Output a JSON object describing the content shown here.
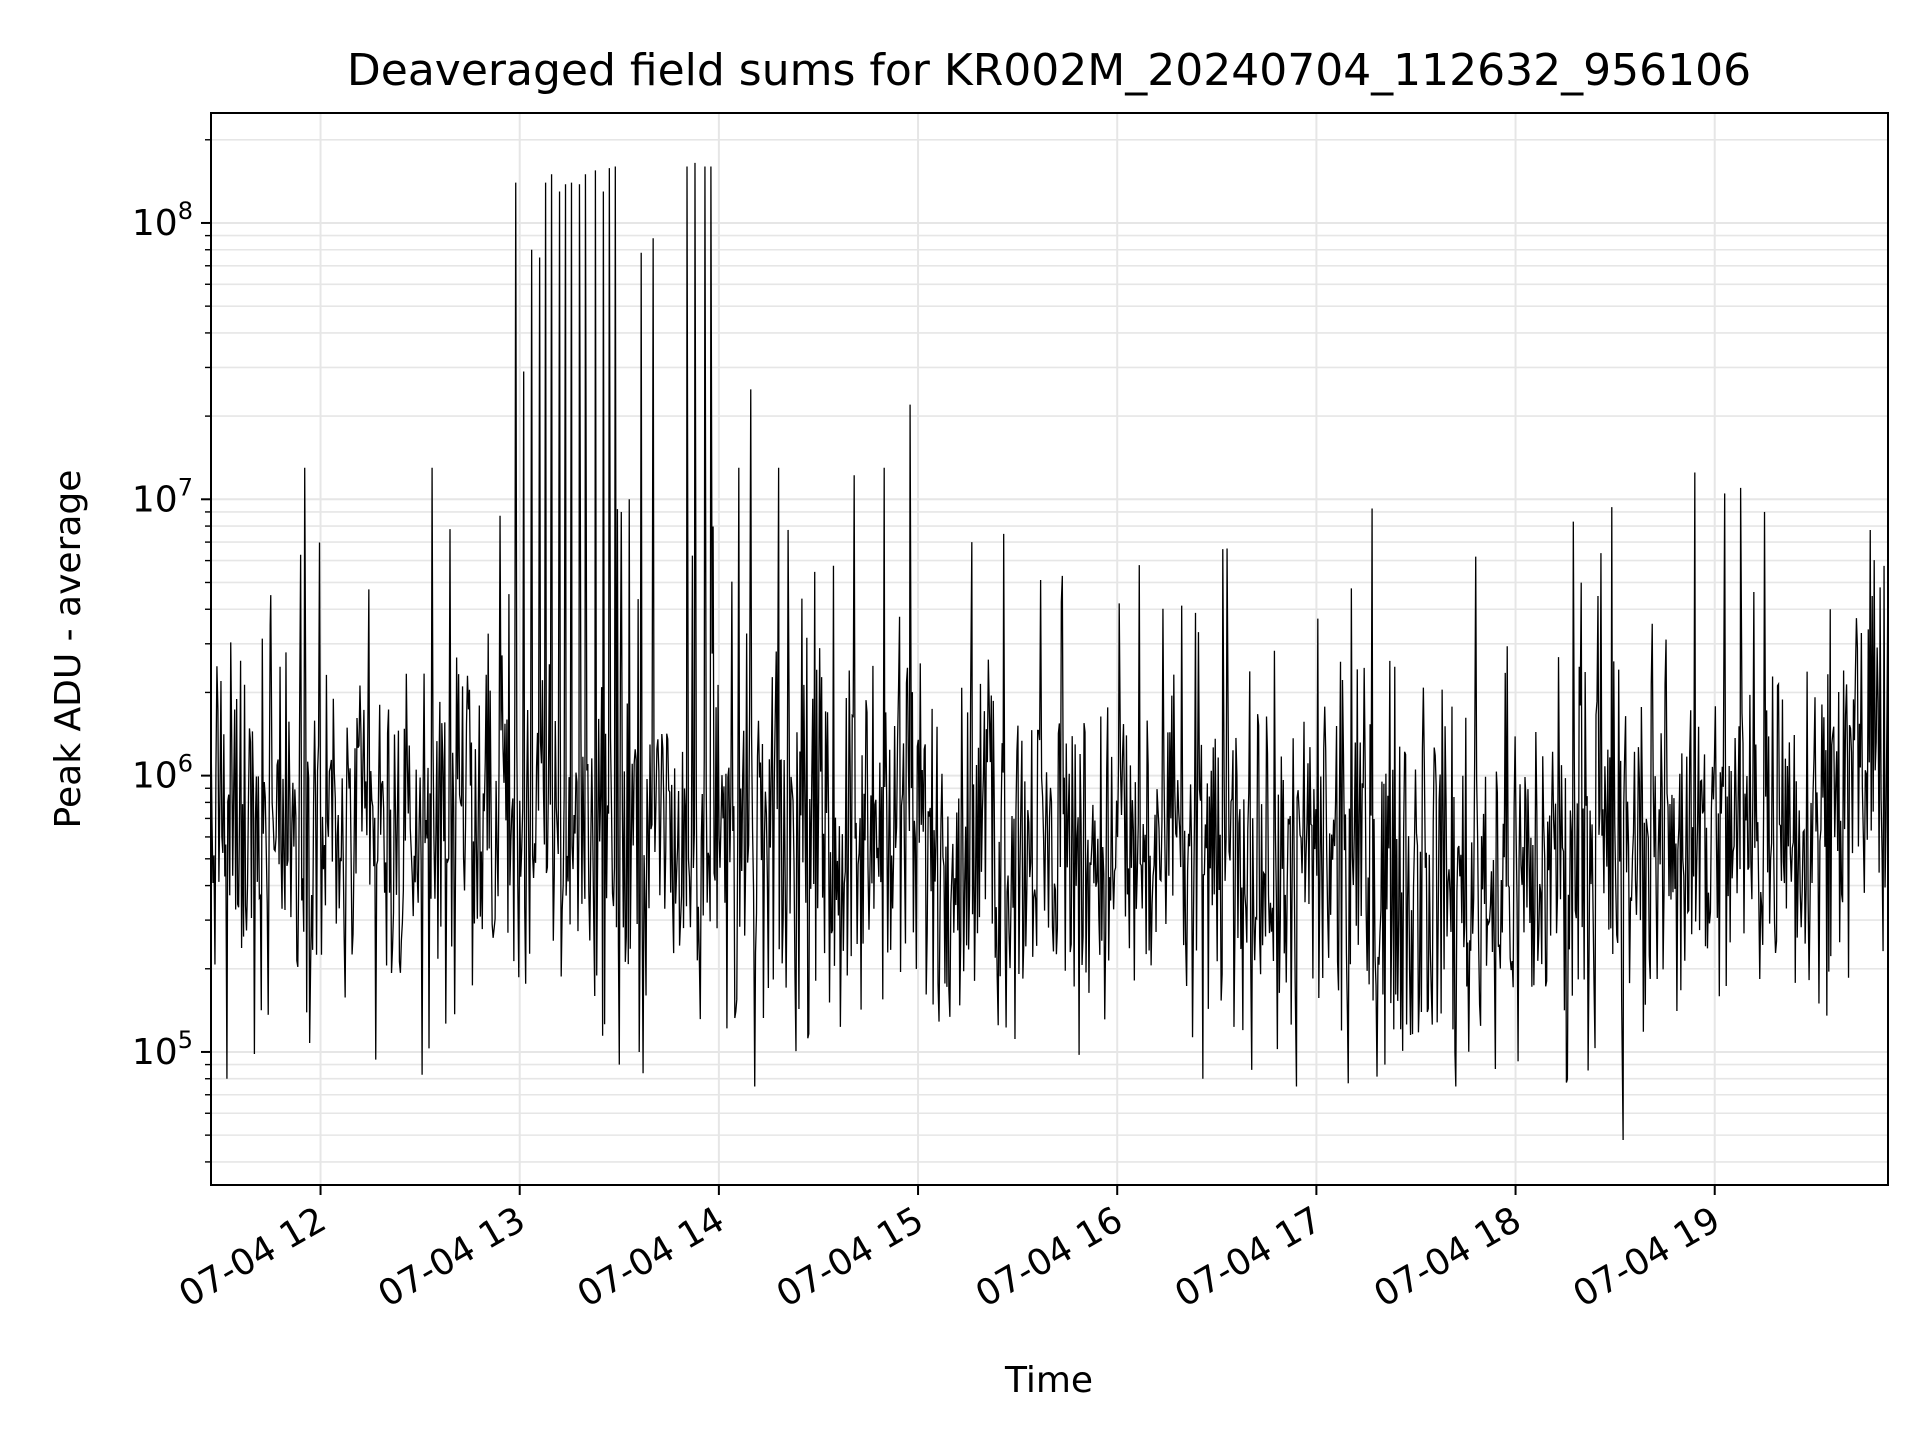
{
  "chart_data": {
    "type": "line",
    "title": "Deaveraged field sums for KR002M_20240704_112632_956106",
    "xlabel": "Time",
    "ylabel": "Peak ADU - average",
    "x_start": "07-04 11:27",
    "x_end": "07-04 19:52",
    "xlim_hours": [
      11.45,
      19.87
    ],
    "x_ticks": [
      "07-04 12",
      "07-04 13",
      "07-04 14",
      "07-04 15",
      "07-04 16",
      "07-04 17",
      "07-04 18",
      "07-04 19"
    ],
    "x_tick_hours": [
      12,
      13,
      14,
      15,
      16,
      17,
      18,
      19
    ],
    "y_scale": "log",
    "ylim": [
      33000,
      250000000
    ],
    "y_ticks": [
      {
        "base": "10",
        "exp": "5",
        "value": 100000
      },
      {
        "base": "10",
        "exp": "6",
        "value": 1000000
      },
      {
        "base": "10",
        "exp": "7",
        "value": 10000000
      },
      {
        "base": "10",
        "exp": "8",
        "value": 100000000
      }
    ],
    "grid": true,
    "line_color": "#000000",
    "grid_color": "#e6e6e6",
    "series": [
      {
        "name": "",
        "baseline": [
          {
            "hour": 11.45,
            "value": 700000
          },
          {
            "hour": 12.0,
            "value": 620000
          },
          {
            "hour": 12.5,
            "value": 550000
          },
          {
            "hour": 13.0,
            "value": 650000
          },
          {
            "hour": 13.5,
            "value": 600000
          },
          {
            "hour": 14.0,
            "value": 560000
          },
          {
            "hour": 14.5,
            "value": 560000
          },
          {
            "hour": 15.0,
            "value": 540000
          },
          {
            "hour": 15.5,
            "value": 520000
          },
          {
            "hour": 16.0,
            "value": 520000
          },
          {
            "hour": 16.5,
            "value": 500000
          },
          {
            "hour": 17.0,
            "value": 440000
          },
          {
            "hour": 17.5,
            "value": 430000
          },
          {
            "hour": 18.0,
            "value": 430000
          },
          {
            "hour": 18.5,
            "value": 500000
          },
          {
            "hour": 19.0,
            "value": 600000
          },
          {
            "hour": 19.5,
            "value": 750000
          },
          {
            "hour": 19.87,
            "value": 1300000
          }
        ],
        "peaks": [
          {
            "hour": 11.5,
            "value": 2200000
          },
          {
            "hour": 11.53,
            "value": 80000
          },
          {
            "hour": 11.75,
            "value": 4500000
          },
          {
            "hour": 11.9,
            "value": 6300000
          },
          {
            "hour": 12.56,
            "value": 13000000
          },
          {
            "hour": 12.65,
            "value": 7800000
          },
          {
            "hour": 12.98,
            "value": 140000000
          },
          {
            "hour": 13.02,
            "value": 29000000
          },
          {
            "hour": 13.06,
            "value": 80000000
          },
          {
            "hour": 13.1,
            "value": 75000000
          },
          {
            "hour": 13.13,
            "value": 140000000
          },
          {
            "hour": 13.16,
            "value": 150000000
          },
          {
            "hour": 13.2,
            "value": 130000000
          },
          {
            "hour": 13.23,
            "value": 138000000
          },
          {
            "hour": 13.26,
            "value": 140000000
          },
          {
            "hour": 13.3,
            "value": 138000000
          },
          {
            "hour": 13.33,
            "value": 150000000
          },
          {
            "hour": 13.38,
            "value": 155000000
          },
          {
            "hour": 13.42,
            "value": 130000000
          },
          {
            "hour": 13.45,
            "value": 158000000
          },
          {
            "hour": 13.48,
            "value": 160000000
          },
          {
            "hour": 13.51,
            "value": 9000000
          },
          {
            "hour": 13.55,
            "value": 10000000
          },
          {
            "hour": 13.61,
            "value": 78000000
          },
          {
            "hour": 13.67,
            "value": 88000000
          },
          {
            "hour": 13.84,
            "value": 160000000
          },
          {
            "hour": 13.88,
            "value": 165000000
          },
          {
            "hour": 13.93,
            "value": 160000000
          },
          {
            "hour": 13.96,
            "value": 160000000
          },
          {
            "hour": 13.5,
            "value": 90000
          },
          {
            "hour": 13.6,
            "value": 100000
          },
          {
            "hour": 14.1,
            "value": 13000000
          },
          {
            "hour": 14.16,
            "value": 25000000
          },
          {
            "hour": 14.3,
            "value": 13000000
          },
          {
            "hour": 14.18,
            "value": 75000
          },
          {
            "hour": 14.83,
            "value": 13000000
          },
          {
            "hour": 14.96,
            "value": 22000000
          },
          {
            "hour": 15.27,
            "value": 7000000
          },
          {
            "hour": 15.43,
            "value": 7500000
          },
          {
            "hour": 16.01,
            "value": 4200000
          },
          {
            "hour": 16.53,
            "value": 6600000
          },
          {
            "hour": 16.43,
            "value": 80000
          },
          {
            "hour": 16.9,
            "value": 75000
          },
          {
            "hour": 17.16,
            "value": 77000
          },
          {
            "hour": 17.8,
            "value": 6200000
          },
          {
            "hour": 17.7,
            "value": 75000
          },
          {
            "hour": 18.29,
            "value": 8300000
          },
          {
            "hour": 18.54,
            "value": 48000
          },
          {
            "hour": 18.9,
            "value": 12500000
          },
          {
            "hour": 19.05,
            "value": 10500000
          },
          {
            "hour": 19.13,
            "value": 11000000
          },
          {
            "hour": 19.25,
            "value": 9000000
          },
          {
            "hour": 19.58,
            "value": 4000000
          }
        ]
      }
    ]
  }
}
